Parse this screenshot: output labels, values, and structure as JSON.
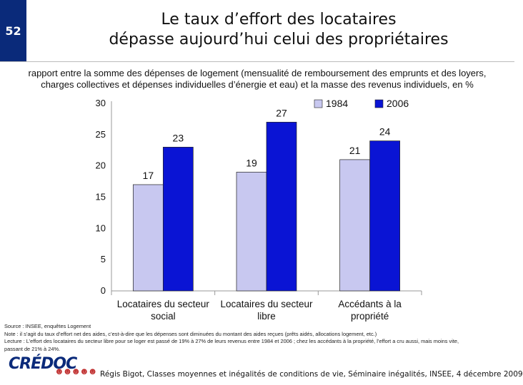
{
  "slide": {
    "number": "52"
  },
  "title": {
    "line1": "Le taux d’effort des locataires",
    "line2": "dépasse aujourd’hui celui des propriétaires"
  },
  "subtitle": {
    "line1": "rapport entre la somme des dépenses de logement (mensualité de remboursement des emprunts et des loyers,",
    "line2": "charges collectives et dépenses individuelles d’énergie et eau) et la masse des revenus individuels, en %"
  },
  "colors": {
    "series_1984": "#c8c8f0",
    "series_2006": "#0a14d4",
    "navy": "#0a2a7a"
  },
  "chart_data": {
    "type": "bar",
    "categories": [
      [
        "Locataires du secteur",
        "social"
      ],
      [
        "Locataires du secteur",
        "libre"
      ],
      [
        "Accédants à la",
        "propriété"
      ]
    ],
    "series": [
      {
        "name": "1984",
        "values": [
          17,
          19,
          21
        ]
      },
      {
        "name": "2006",
        "values": [
          23,
          27,
          24
        ]
      }
    ],
    "ylim": [
      0,
      30
    ],
    "yticks": [
      0,
      5,
      10,
      15,
      20,
      25,
      30
    ],
    "legend": "top-right"
  },
  "notes": {
    "source": "Source : INSEE, enquêtes Logement",
    "note": "Note : il s’agit du taux d’effort net des aides, c’est-à-dire que les dépenses sont diminuées du montant des aides reçues (prêts aidés, allocations logement, etc.)",
    "lecture1": "Lecture : L’effort des locataires du secteur libre pour se loger est passé de 19% à 27% de leurs revenus entre 1984 et 2006 ; chez les accédants à la propriété, l’effort a cru aussi, mais moins vite,",
    "lecture2": "passant de 21% à 24%."
  },
  "footer": {
    "logo": "CRÉDOC",
    "text": "Régis Bigot, Classes moyennes et inégalités de conditions de vie, Séminaire inégalités, INSEE, 4 décembre 2009"
  }
}
